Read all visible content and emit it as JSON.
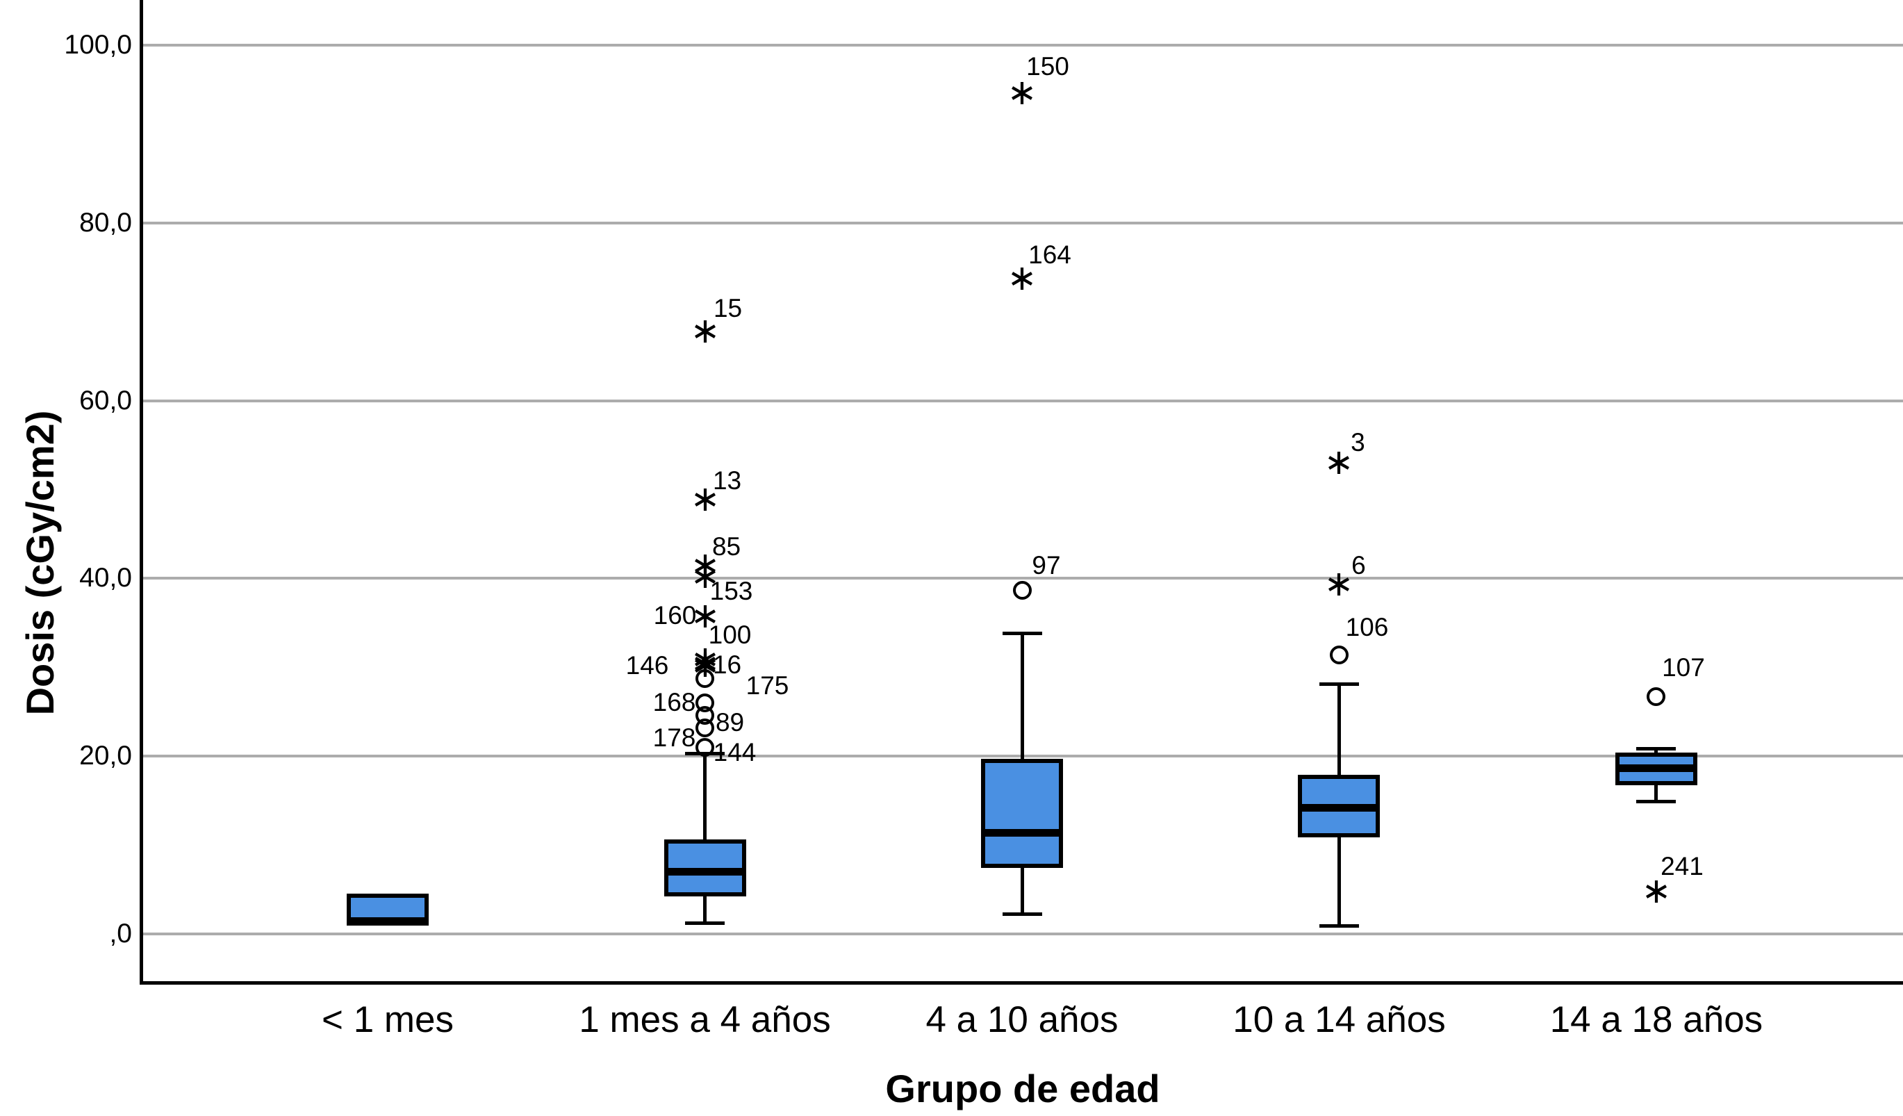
{
  "chart_data": {
    "type": "boxplot",
    "title": "",
    "xlabel": "Grupo de edad",
    "ylabel": "Dosis (cGy/cm2)",
    "y_axis": {
      "min": -5.5,
      "max": 105,
      "grid": true,
      "ticks": [
        {
          "v": 0,
          "label": ",0"
        },
        {
          "v": 20,
          "label": "20,0"
        },
        {
          "v": 40,
          "label": "40,0"
        },
        {
          "v": 60,
          "label": "60,0"
        },
        {
          "v": 80,
          "label": "80,0"
        },
        {
          "v": 100,
          "label": "100,0"
        }
      ]
    },
    "colors": {
      "box_fill": "#4A90E2",
      "box_border": "#000000",
      "grid": "#ACACAC",
      "axis": "#000000",
      "text": "#000000",
      "background": "#ffffff"
    },
    "categories": [
      "< 1 mes",
      "1 mes a 4 años",
      "4 a 10 años",
      "10 a 14 años",
      "14 a 18 años"
    ],
    "boxes": [
      {
        "category": "< 1 mes",
        "q1": 0.9,
        "median": 1.5,
        "q3": 4.5,
        "whisker_low": null,
        "whisker_high": null,
        "outliers": []
      },
      {
        "category": "1 mes a 4 años",
        "q1": 4.2,
        "median": 7.0,
        "q3": 10.6,
        "whisker_low": 1.2,
        "whisker_high": 20.3,
        "outliers": [
          {
            "id": "144",
            "value": 21.0,
            "marker": "circle",
            "label_offset": [
              43,
              8
            ]
          },
          {
            "id": "178",
            "value": 23.2,
            "marker": "circle",
            "label_offset": [
              -44,
              15
            ]
          },
          {
            "id": "89",
            "value": 24.6,
            "marker": "circle",
            "label_offset": [
              36,
              11
            ]
          },
          {
            "id": "168",
            "value": 26.0,
            "marker": "circle",
            "label_offset": [
              -44,
              0
            ]
          },
          {
            "id": "175",
            "value": 28.7,
            "marker": "circle",
            "label_offset": [
              90,
              10
            ]
          },
          {
            "id": "146",
            "value": 30.2,
            "marker": "star",
            "label_offset": [
              -83,
              0
            ]
          },
          {
            "id": "16",
            "value": 30.4,
            "marker": "star",
            "label_offset": [
              32,
              2
            ]
          },
          {
            "id": "100",
            "value": 30.9,
            "marker": "star",
            "label_offset": [
              36,
              -35
            ]
          },
          {
            "id": "160",
            "value": 35.7,
            "marker": "star",
            "label_offset": [
              -43,
              -1
            ]
          },
          {
            "id": "153",
            "value": 40.2,
            "marker": "star",
            "label_offset": [
              38,
              21
            ]
          },
          {
            "id": "85",
            "value": 41.4,
            "marker": "star",
            "label_offset": [
              31,
              -27
            ]
          },
          {
            "id": "13",
            "value": 48.9,
            "marker": "star",
            "label_offset": [
              32,
              -27
            ]
          },
          {
            "id": "15",
            "value": 67.8,
            "marker": "star",
            "label_offset": [
              33,
              -33
            ]
          }
        ]
      },
      {
        "category": "4 a 10 años",
        "q1": 7.4,
        "median": 11.4,
        "q3": 19.7,
        "whisker_low": 2.2,
        "whisker_high": 33.8,
        "outliers": [
          {
            "id": "97",
            "value": 38.7,
            "marker": "circle",
            "label_offset": [
              35,
              -35
            ]
          },
          {
            "id": "164",
            "value": 73.7,
            "marker": "star",
            "label_offset": [
              40,
              -34
            ]
          },
          {
            "id": "150",
            "value": 94.6,
            "marker": "star",
            "label_offset": [
              37,
              -38
            ]
          }
        ]
      },
      {
        "category": "10 a 14 años",
        "q1": 10.9,
        "median": 14.2,
        "q3": 17.9,
        "whisker_low": 0.9,
        "whisker_high": 28.1,
        "outliers": [
          {
            "id": "106",
            "value": 31.4,
            "marker": "circle",
            "label_offset": [
              40,
              -39
            ]
          },
          {
            "id": "6",
            "value": 39.3,
            "marker": "star",
            "label_offset": [
              28,
              -27
            ]
          },
          {
            "id": "3",
            "value": 53.0,
            "marker": "star",
            "label_offset": [
              27,
              -29
            ]
          }
        ]
      },
      {
        "category": "14 a 18 años",
        "q1": 16.7,
        "median": 18.7,
        "q3": 20.4,
        "whisker_low": 14.9,
        "whisker_high": 20.8,
        "outliers": [
          {
            "id": "107",
            "value": 26.7,
            "marker": "circle",
            "label_offset": [
              39,
              -42
            ]
          },
          {
            "id": "241",
            "value": 4.8,
            "marker": "star",
            "label_offset": [
              37,
              -36
            ]
          }
        ]
      }
    ]
  }
}
